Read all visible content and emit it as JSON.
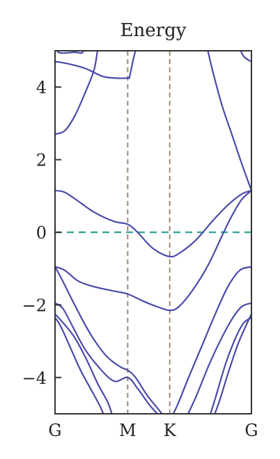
{
  "chart_data": {
    "type": "line",
    "title": "Energy",
    "xlabel": "",
    "ylabel": "",
    "ylim": [
      -5,
      5
    ],
    "y_ticks": [
      4,
      2,
      0,
      -2,
      -4
    ],
    "y_tick_labels": [
      "4",
      "2",
      "0",
      "−2",
      "−4"
    ],
    "x_range": [
      0,
      1
    ],
    "k_points": [
      {
        "label": "G",
        "x": 0
      },
      {
        "label": "M",
        "x": 0.37
      },
      {
        "label": "K",
        "x": 0.584
      },
      {
        "label": "G",
        "x": 1
      }
    ],
    "fermi_level": 0,
    "grid": false,
    "colors": {
      "bands": "#4a4aa8",
      "fermi": "#3aa89a",
      "kline": "#9a8878",
      "axes": "#333333"
    },
    "series": [
      {
        "points": [
          [
            0,
            4.7
          ],
          [
            0.03,
            4.68
          ],
          [
            0.1,
            4.6
          ],
          [
            0.16,
            4.5
          ],
          [
            0.24,
            4.3
          ],
          [
            0.3,
            4.25
          ],
          [
            0.37,
            4.25
          ],
          [
            0.38,
            4.3
          ],
          [
            0.4,
            4.8
          ],
          [
            0.42,
            5.2
          ]
        ]
      },
      {
        "points": [
          [
            0,
            5.2
          ],
          [
            0.02,
            4.95
          ],
          [
            0.1,
            4.96
          ],
          [
            0.14,
            4.95
          ],
          [
            0.15,
            5.2
          ]
        ]
      },
      {
        "points": [
          [
            0,
            2.7
          ],
          [
            0.05,
            2.8
          ],
          [
            0.1,
            3.2
          ],
          [
            0.15,
            3.8
          ],
          [
            0.2,
            4.5
          ],
          [
            0.22,
            5.2
          ]
        ]
      },
      {
        "points": [
          [
            0,
            1.15
          ],
          [
            0.05,
            1.1
          ],
          [
            0.12,
            0.85
          ],
          [
            0.2,
            0.55
          ],
          [
            0.3,
            0.3
          ],
          [
            0.37,
            0.22
          ],
          [
            0.42,
            0.0
          ],
          [
            0.5,
            -0.45
          ],
          [
            0.584,
            -0.67
          ],
          [
            0.64,
            -0.55
          ],
          [
            0.72,
            -0.2
          ],
          [
            0.8,
            0.3
          ],
          [
            0.88,
            0.75
          ],
          [
            0.95,
            1.05
          ],
          [
            1,
            1.15
          ]
        ]
      },
      {
        "points": [
          [
            0,
            -0.95
          ],
          [
            0.05,
            -1.05
          ],
          [
            0.12,
            -1.35
          ],
          [
            0.2,
            -1.5
          ],
          [
            0.3,
            -1.62
          ],
          [
            0.37,
            -1.7
          ],
          [
            0.45,
            -1.9
          ],
          [
            0.52,
            -2.05
          ],
          [
            0.584,
            -2.15
          ],
          [
            0.63,
            -2.05
          ],
          [
            0.7,
            -1.6
          ],
          [
            0.78,
            -0.9
          ],
          [
            0.85,
            -0.1
          ],
          [
            0.9,
            0.45
          ],
          [
            0.95,
            0.9
          ],
          [
            1,
            1.15
          ]
        ]
      },
      {
        "points": [
          [
            0,
            -0.95
          ],
          [
            0.04,
            -1.35
          ],
          [
            0.1,
            -2.0
          ],
          [
            0.18,
            -2.8
          ],
          [
            0.26,
            -3.4
          ],
          [
            0.33,
            -3.7
          ],
          [
            0.37,
            -3.8
          ],
          [
            0.41,
            -4.0
          ],
          [
            0.47,
            -4.5
          ],
          [
            0.53,
            -4.9
          ],
          [
            0.57,
            -5.2
          ]
        ]
      },
      {
        "points": [
          [
            0,
            -1.95
          ],
          [
            0.04,
            -2.1
          ],
          [
            0.09,
            -2.6
          ],
          [
            0.15,
            -3.2
          ],
          [
            0.22,
            -3.7
          ],
          [
            0.3,
            -4.1
          ],
          [
            0.37,
            -4.0
          ],
          [
            0.42,
            -4.3
          ],
          [
            0.48,
            -4.75
          ],
          [
            0.53,
            -5.05
          ],
          [
            0.56,
            -5.2
          ]
        ]
      },
      {
        "points": [
          [
            0,
            -2.35
          ],
          [
            0.03,
            -2.6
          ],
          [
            0.08,
            -3.2
          ],
          [
            0.13,
            -3.8
          ],
          [
            0.18,
            -4.3
          ],
          [
            0.23,
            -4.8
          ],
          [
            0.26,
            -5.2
          ]
        ]
      },
      {
        "points": [
          [
            0,
            -2.25
          ],
          [
            0.05,
            -2.55
          ],
          [
            0.1,
            -2.9
          ],
          [
            0.16,
            -3.5
          ],
          [
            0.22,
            -4.2
          ],
          [
            0.27,
            -4.7
          ],
          [
            0.3,
            -5.2
          ]
        ]
      },
      {
        "points": [
          [
            0.58,
            -5.2
          ],
          [
            0.62,
            -4.8
          ],
          [
            0.68,
            -4.0
          ],
          [
            0.75,
            -3.1
          ],
          [
            0.82,
            -2.2
          ],
          [
            0.88,
            -1.5
          ],
          [
            0.94,
            -1.05
          ],
          [
            1,
            -0.95
          ]
        ]
      },
      {
        "points": [
          [
            0.66,
            -5.2
          ],
          [
            0.72,
            -4.5
          ],
          [
            0.78,
            -3.7
          ],
          [
            0.84,
            -3.0
          ],
          [
            0.9,
            -2.4
          ],
          [
            0.95,
            -2.05
          ],
          [
            1,
            -1.95
          ]
        ]
      },
      {
        "points": [
          [
            0.78,
            -5.2
          ],
          [
            0.82,
            -4.5
          ],
          [
            0.87,
            -3.6
          ],
          [
            0.92,
            -2.9
          ],
          [
            0.96,
            -2.5
          ],
          [
            1,
            -2.35
          ]
        ]
      },
      {
        "points": [
          [
            0.8,
            -5.2
          ],
          [
            0.84,
            -4.6
          ],
          [
            0.88,
            -3.9
          ],
          [
            0.93,
            -3.1
          ],
          [
            0.97,
            -2.6
          ],
          [
            1,
            -2.25
          ]
        ]
      },
      {
        "points": [
          [
            0.77,
            5.2
          ],
          [
            0.8,
            4.5
          ],
          [
            0.85,
            3.5
          ],
          [
            0.9,
            2.7
          ],
          [
            0.95,
            1.9
          ],
          [
            1,
            1.15
          ]
        ]
      },
      {
        "points": [
          [
            0.42,
            5.2
          ],
          [
            0.44,
            5.0
          ],
          [
            0.45,
            5.2
          ]
        ]
      },
      {
        "points": [
          [
            0.93,
            5.2
          ],
          [
            0.96,
            4.85
          ],
          [
            1,
            4.7
          ]
        ]
      }
    ]
  }
}
